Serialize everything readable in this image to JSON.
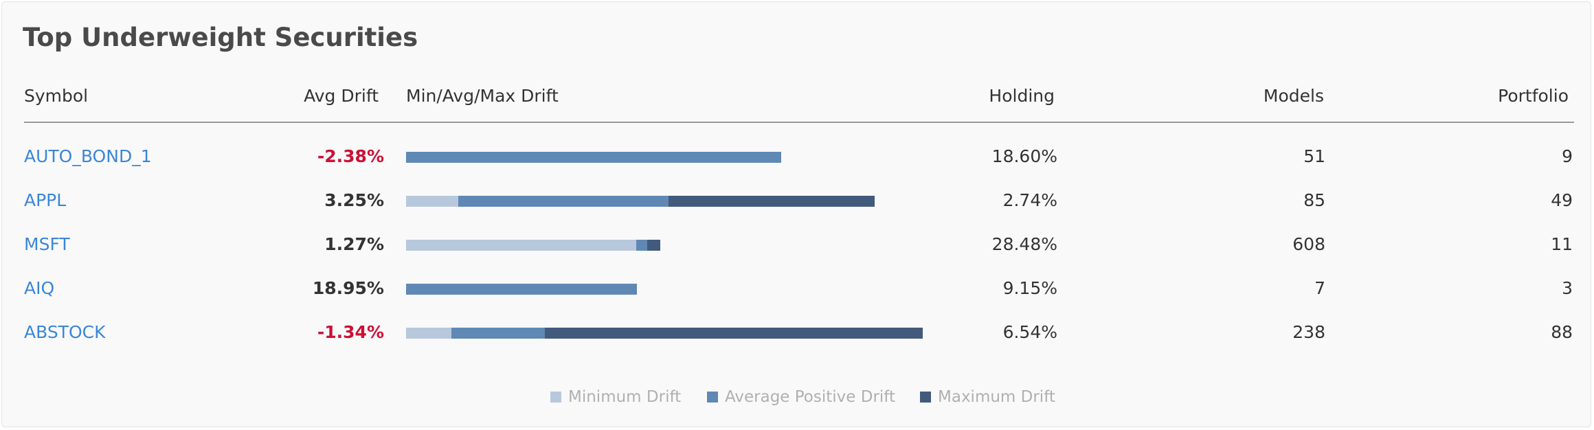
{
  "title": "Top Underweight Securities",
  "headers": {
    "symbol": "Symbol",
    "avg_drift": "Avg Drift",
    "min_avg_max": "Min/Avg/Max Drift",
    "holding": "Holding",
    "models": "Models",
    "portfolio": "Portfolio"
  },
  "colors": {
    "minimum": "#b8c8dc",
    "average": "#6088b4",
    "maximum": "#425a7c",
    "negative_text": "#cc1136",
    "link": "#3b86d6"
  },
  "rows": [
    {
      "symbol": "AUTO_BOND_1",
      "avg_drift": "-2.38%",
      "negative": true,
      "bar": {
        "min": 0,
        "avg": 546,
        "max": 546
      },
      "holding": "18.60%",
      "models": "51",
      "portfolio": "9"
    },
    {
      "symbol": "APPL",
      "avg_drift": "3.25%",
      "negative": false,
      "bar": {
        "min": 76,
        "avg": 382,
        "max": 682
      },
      "holding": "2.74%",
      "models": "85",
      "portfolio": "49"
    },
    {
      "symbol": "MSFT",
      "avg_drift": "1.27%",
      "negative": false,
      "bar": {
        "min": 335,
        "avg": 351,
        "max": 370
      },
      "holding": "28.48%",
      "models": "608",
      "portfolio": "11"
    },
    {
      "symbol": "AIQ",
      "avg_drift": "18.95%",
      "negative": false,
      "bar": {
        "min": 0,
        "avg": 336,
        "max": 336
      },
      "holding": "9.15%",
      "models": "7",
      "portfolio": "3"
    },
    {
      "symbol": "ABSTOCK",
      "avg_drift": "-1.34%",
      "negative": true,
      "bar": {
        "min": 66,
        "avg": 202,
        "max": 752
      },
      "holding": "6.54%",
      "models": "238",
      "portfolio": "88"
    }
  ],
  "legend": [
    {
      "label": "Minimum Drift",
      "color": "#b8c8dc"
    },
    {
      "label": "Average Positive Drift",
      "color": "#6088b4"
    },
    {
      "label": "Maximum Drift",
      "color": "#425a7c"
    }
  ]
}
